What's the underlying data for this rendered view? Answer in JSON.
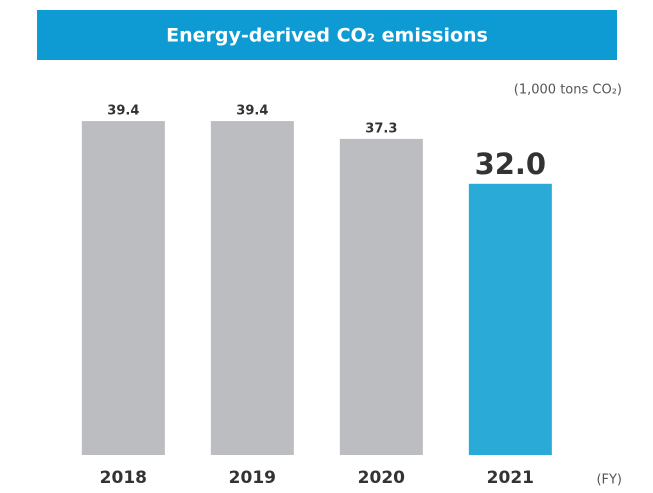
{
  "chart_data": {
    "type": "bar",
    "title": "Energy-derived CO₂ emissions",
    "unit_label": "(1,000 tons CO₂)",
    "x_label": "(FY)",
    "categories": [
      "2018",
      "2019",
      "2020",
      "2021"
    ],
    "values": [
      39.4,
      39.4,
      37.3,
      32.0
    ],
    "value_labels": [
      "39.4",
      "39.4",
      "37.3",
      "32.0"
    ],
    "colors": [
      "#bcbdc0",
      "#bcbdc0",
      "#bcbdc0",
      "#2aaad7"
    ],
    "title_color": "#0e9ad2",
    "ylim": [
      0,
      40
    ]
  }
}
